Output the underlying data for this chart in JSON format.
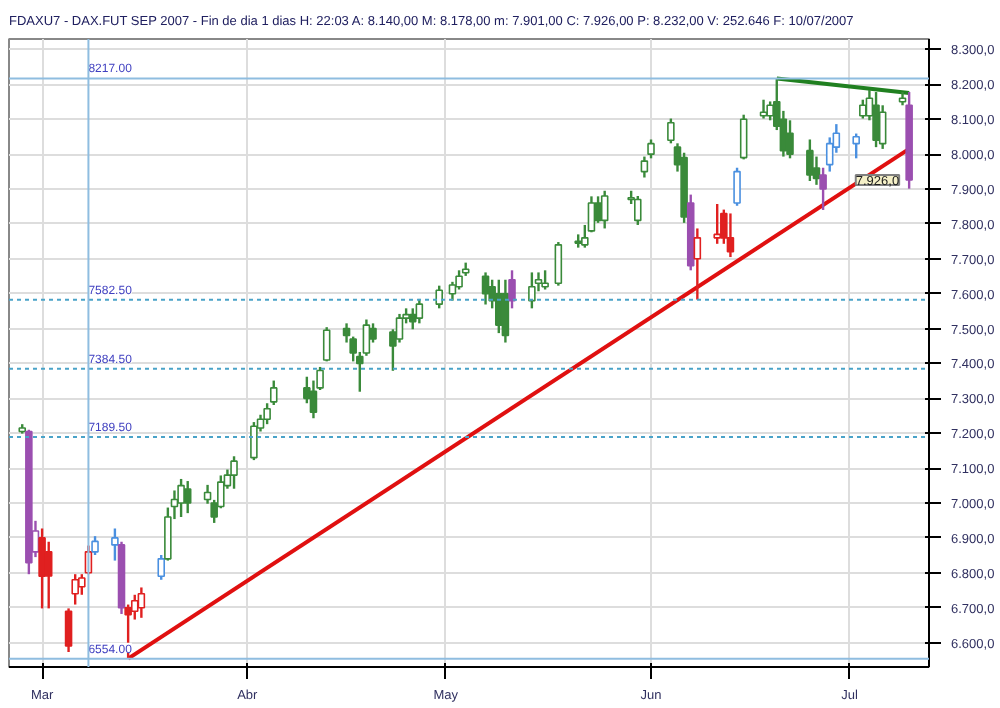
{
  "chart_data": {
    "type": "candlestick",
    "title": "FDAXU7 - DAX.FUT SEP 2007 - Fin de dia 1 dias H: 22:03 A: 8.140,00 M: 8.178,00 m: 7.901,00 C: 7.926,00 P: 8.232,00 V: 252.646 F: 10/07/2007",
    "x": [
      "2007-02-26",
      "2007-02-27",
      "2007-02-28",
      "2007-03-01",
      "2007-03-02",
      "2007-03-05",
      "2007-03-06",
      "2007-03-07",
      "2007-03-08",
      "2007-03-09",
      "2007-03-12",
      "2007-03-13",
      "2007-03-14",
      "2007-03-15",
      "2007-03-16",
      "2007-03-19",
      "2007-03-20",
      "2007-03-21",
      "2007-03-22",
      "2007-03-23",
      "2007-03-26",
      "2007-03-27",
      "2007-03-28",
      "2007-03-29",
      "2007-03-30",
      "2007-04-02",
      "2007-04-03",
      "2007-04-04",
      "2007-04-05",
      "2007-04-10",
      "2007-04-11",
      "2007-04-12",
      "2007-04-13",
      "2007-04-16",
      "2007-04-17",
      "2007-04-18",
      "2007-04-19",
      "2007-04-20",
      "2007-04-23",
      "2007-04-24",
      "2007-04-25",
      "2007-04-26",
      "2007-04-27",
      "2007-04-30",
      "2007-05-02",
      "2007-05-03",
      "2007-05-04",
      "2007-05-07",
      "2007-05-08",
      "2007-05-09",
      "2007-05-10",
      "2007-05-11",
      "2007-05-14",
      "2007-05-15",
      "2007-05-16",
      "2007-05-18",
      "2007-05-21",
      "2007-05-22",
      "2007-05-23",
      "2007-05-24",
      "2007-05-25",
      "2007-05-29",
      "2007-05-30",
      "2007-05-31",
      "2007-06-01",
      "2007-06-04",
      "2007-06-05",
      "2007-06-06",
      "2007-06-07",
      "2007-06-08",
      "2007-06-11",
      "2007-06-12",
      "2007-06-13",
      "2007-06-14",
      "2007-06-15",
      "2007-06-18",
      "2007-06-19",
      "2007-06-20",
      "2007-06-21",
      "2007-06-22",
      "2007-06-25",
      "2007-06-26",
      "2007-06-27",
      "2007-06-28",
      "2007-06-29",
      "2007-07-02",
      "2007-07-03",
      "2007-07-04",
      "2007-07-05",
      "2007-07-06",
      "2007-07-09",
      "2007-07-10"
    ],
    "ohlc": [
      [
        7205,
        7226,
        7199,
        7215
      ],
      [
        7205,
        7210,
        6796,
        6829
      ],
      [
        6860,
        6949,
        6845,
        6920
      ],
      [
        6900,
        6927,
        6698,
        6790
      ],
      [
        6860,
        6889,
        6698,
        6791
      ],
      [
        6690,
        6698,
        6573,
        6590
      ],
      [
        6740,
        6796,
        6709,
        6780
      ],
      [
        6760,
        6796,
        6737,
        6785
      ],
      [
        6800,
        6878,
        6796,
        6860
      ],
      [
        6860,
        6905,
        6851,
        6890
      ],
      [
        6880,
        6927,
        6835,
        6900
      ],
      [
        6880,
        6889,
        6682,
        6700
      ],
      [
        6700,
        6709,
        6554,
        6680
      ],
      [
        6690,
        6737,
        6666,
        6720
      ],
      [
        6700,
        6758,
        6671,
        6740
      ],
      [
        6790,
        6851,
        6780,
        6840
      ],
      [
        6840,
        6987,
        6835,
        6960
      ],
      [
        6990,
        7036,
        6954,
        7010
      ],
      [
        7000,
        7069,
        6960,
        7050
      ],
      [
        7040,
        7063,
        6971,
        7000
      ],
      [
        7010,
        7052,
        6998,
        7030
      ],
      [
        7000,
        7009,
        6943,
        6960
      ],
      [
        6990,
        7079,
        6985,
        7060
      ],
      [
        7050,
        7096,
        7041,
        7080
      ],
      [
        7080,
        7134,
        7041,
        7120
      ],
      [
        7130,
        7232,
        7123,
        7220
      ],
      [
        7215,
        7253,
        7205,
        7240
      ],
      [
        7240,
        7286,
        7226,
        7270
      ],
      [
        7290,
        7351,
        7281,
        7330
      ],
      [
        7330,
        7362,
        7286,
        7300
      ],
      [
        7320,
        7351,
        7243,
        7260
      ],
      [
        7330,
        7390,
        7324,
        7380
      ],
      [
        7410,
        7504,
        7406,
        7495
      ],
      [
        7500,
        7515,
        7460,
        7480
      ],
      [
        7470,
        7477,
        7406,
        7430
      ],
      [
        7420,
        7433,
        7319,
        7400
      ],
      [
        7430,
        7526,
        7422,
        7510
      ],
      [
        7500,
        7515,
        7460,
        7470
      ],
      [
        7490,
        7498,
        7379,
        7450
      ],
      [
        7470,
        7542,
        7460,
        7530
      ],
      [
        7530,
        7558,
        7515,
        7540
      ],
      [
        7540,
        7558,
        7498,
        7520
      ],
      [
        7530,
        7585,
        7515,
        7570
      ],
      [
        7570,
        7623,
        7558,
        7610
      ],
      [
        7600,
        7634,
        7580,
        7625
      ],
      [
        7620,
        7667,
        7612,
        7650
      ],
      [
        7660,
        7689,
        7651,
        7670
      ],
      [
        7650,
        7661,
        7569,
        7600
      ],
      [
        7620,
        7640,
        7558,
        7580
      ],
      [
        7600,
        7640,
        7487,
        7510
      ],
      [
        7600,
        7640,
        7460,
        7480
      ],
      [
        7640,
        7667,
        7558,
        7580
      ],
      [
        7580,
        7661,
        7558,
        7620
      ],
      [
        7630,
        7661,
        7607,
        7640
      ],
      [
        7620,
        7667,
        7612,
        7630
      ],
      [
        7630,
        7748,
        7623,
        7740
      ],
      [
        7750,
        7770,
        7732,
        7745
      ],
      [
        7740,
        7797,
        7732,
        7760
      ],
      [
        7780,
        7879,
        7776,
        7860
      ],
      [
        7860,
        7879,
        7803,
        7810
      ],
      [
        7810,
        7895,
        7787,
        7880
      ],
      [
        7870,
        7895,
        7857,
        7875
      ],
      [
        7810,
        7880,
        7797,
        7870
      ],
      [
        7950,
        7993,
        7933,
        7980
      ],
      [
        8000,
        8042,
        7988,
        8030
      ],
      [
        8040,
        8102,
        8031,
        8090
      ],
      [
        8020,
        8031,
        7950,
        7970
      ],
      [
        7990,
        8004,
        7803,
        7820
      ],
      [
        7860,
        7884,
        7667,
        7680
      ],
      [
        7700,
        7787,
        7583,
        7760
      ],
      [
        7760,
        7857,
        7743,
        7770
      ],
      [
        7830,
        7841,
        7743,
        7760
      ],
      [
        7760,
        7830,
        7705,
        7720
      ],
      [
        7860,
        7961,
        7852,
        7950
      ],
      [
        7990,
        8113,
        7985,
        8100
      ],
      [
        8110,
        8156,
        8102,
        8120
      ],
      [
        8110,
        8151,
        8097,
        8140
      ],
      [
        8150,
        8217,
        8069,
        8080
      ],
      [
        8100,
        8124,
        7993,
        8010
      ],
      [
        8060,
        8097,
        7988,
        8000
      ],
      [
        8010,
        8042,
        7923,
        7940
      ],
      [
        7960,
        7993,
        7912,
        7930
      ],
      [
        7940,
        7961,
        7840,
        7900
      ],
      [
        7970,
        8048,
        7950,
        8030
      ],
      [
        8020,
        8086,
        8004,
        8060
      ],
      [
        8030,
        8059,
        7988,
        8050
      ],
      [
        8110,
        8156,
        8102,
        8140
      ],
      [
        8110,
        8184,
        8097,
        8160
      ],
      [
        8140,
        8178,
        8020,
        8040
      ],
      [
        8030,
        8140,
        8015,
        8120
      ],
      [
        8150,
        8178,
        8140,
        8160
      ],
      [
        8140,
        8178,
        7901,
        7926
      ]
    ],
    "colors": [
      "#3a8a3a",
      "#9b4fb0",
      "#9b4fb0",
      "#e02020",
      "#e02020",
      "#e02020",
      "#e02020",
      "#e02020",
      "#e02020",
      "#4a90e0",
      "#4a90e0",
      "#9b4fb0",
      "#e02020",
      "#e02020",
      "#e02020",
      "#4a90e0",
      "#3a8a3a",
      "#3a8a3a",
      "#3a8a3a",
      "#3a8a3a",
      "#3a8a3a",
      "#3a8a3a",
      "#3a8a3a",
      "#3a8a3a",
      "#3a8a3a",
      "#3a8a3a",
      "#3a8a3a",
      "#3a8a3a",
      "#3a8a3a",
      "#3a8a3a",
      "#3a8a3a",
      "#3a8a3a",
      "#3a8a3a",
      "#3a8a3a",
      "#3a8a3a",
      "#3a8a3a",
      "#3a8a3a",
      "#3a8a3a",
      "#3a8a3a",
      "#3a8a3a",
      "#3a8a3a",
      "#3a8a3a",
      "#3a8a3a",
      "#3a8a3a",
      "#3a8a3a",
      "#3a8a3a",
      "#3a8a3a",
      "#3a8a3a",
      "#3a8a3a",
      "#3a8a3a",
      "#3a8a3a",
      "#9b4fb0",
      "#3a8a3a",
      "#3a8a3a",
      "#3a8a3a",
      "#3a8a3a",
      "#3a8a3a",
      "#3a8a3a",
      "#3a8a3a",
      "#3a8a3a",
      "#3a8a3a",
      "#3a8a3a",
      "#3a8a3a",
      "#3a8a3a",
      "#3a8a3a",
      "#3a8a3a",
      "#3a8a3a",
      "#3a8a3a",
      "#9b4fb0",
      "#e02020",
      "#e02020",
      "#e02020",
      "#e02020",
      "#4a90e0",
      "#3a8a3a",
      "#3a8a3a",
      "#3a8a3a",
      "#3a8a3a",
      "#3a8a3a",
      "#3a8a3a",
      "#3a8a3a",
      "#3a8a3a",
      "#9b4fb0",
      "#4a90e0",
      "#4a90e0",
      "#4a90e0",
      "#3a8a3a",
      "#3a8a3a",
      "#3a8a3a",
      "#3a8a3a",
      "#3a8a3a",
      "#9b4fb0"
    ],
    "series": [
      {
        "type": "line",
        "color": "#e01010",
        "x": [
          "2007-03-14",
          "2007-07-10"
        ],
        "values": [
          6554,
          8015
        ]
      },
      {
        "type": "line",
        "color": "#208020",
        "x": [
          "2007-06-20",
          "2007-07-10"
        ],
        "values": [
          8217,
          8175
        ]
      }
    ],
    "ref_lines": [
      {
        "axis": "y",
        "value": 8217,
        "label": "8217.00",
        "color": "#8fbde0",
        "line_style": "solid"
      },
      {
        "axis": "y",
        "value": 7582.5,
        "label": "7582.50",
        "color": "#4aa3c8",
        "line_style": "dotted"
      },
      {
        "axis": "y",
        "value": 7384.5,
        "label": "7384.50",
        "color": "#4aa3c8",
        "line_style": "dotted"
      },
      {
        "axis": "y",
        "value": 7189.5,
        "label": "7189.50",
        "color": "#4aa3c8",
        "line_style": "dotted"
      },
      {
        "axis": "y",
        "value": 6554,
        "label": "6554.00",
        "color": "#8fbde0",
        "line_style": "solid"
      },
      {
        "axis": "x",
        "value": "2007-03-08",
        "label": null,
        "color": "#8fbde0",
        "line_style": "solid"
      }
    ],
    "annotations": [
      {
        "text": "7.926,0",
        "x": "2007-07-10",
        "y": 7926
      }
    ],
    "xlim": [
      "2007-02-24",
      "2007-07-13"
    ],
    "xticks": [
      {
        "value": "2007-03-01",
        "label": "Mar"
      },
      {
        "value": "2007-04-01",
        "label": "Abr"
      },
      {
        "value": "2007-05-01",
        "label": "May"
      },
      {
        "value": "2007-06-01",
        "label": "Jun"
      },
      {
        "value": "2007-07-01",
        "label": "Jul"
      }
    ],
    "ylim": [
      6530,
      8330
    ],
    "yticks": [
      {
        "value": 6600,
        "label": "6.600,0"
      },
      {
        "value": 6700,
        "label": "6.700,0"
      },
      {
        "value": 6800,
        "label": "6.800,0"
      },
      {
        "value": 6900,
        "label": "6.900,0"
      },
      {
        "value": 7000,
        "label": "7.000,0"
      },
      {
        "value": 7100,
        "label": "7.100,0"
      },
      {
        "value": 7200,
        "label": "7.200,0"
      },
      {
        "value": 7300,
        "label": "7.300,0"
      },
      {
        "value": 7400,
        "label": "7.400,0"
      },
      {
        "value": 7500,
        "label": "7.500,0"
      },
      {
        "value": 7600,
        "label": "7.600,0"
      },
      {
        "value": 7700,
        "label": "7.700,0"
      },
      {
        "value": 7800,
        "label": "7.800,0"
      },
      {
        "value": 7900,
        "label": "7.900,0"
      },
      {
        "value": 8000,
        "label": "8.000,0"
      },
      {
        "value": 8100,
        "label": "8.100,0"
      },
      {
        "value": 8200,
        "label": "8.200,0"
      },
      {
        "value": 8300,
        "label": "8.300,0"
      }
    ],
    "grid": true
  }
}
